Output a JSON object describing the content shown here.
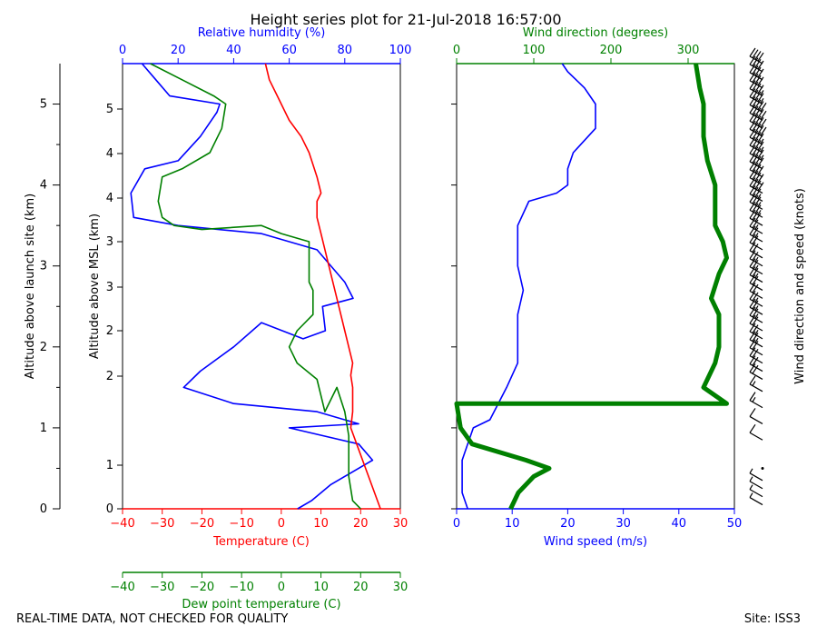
{
  "colors": {
    "temp": "#ff0000",
    "dew": "#008000",
    "rh": "#0000ff",
    "wdir": "#008000",
    "wspd": "#0000ff",
    "axis": "#000000"
  },
  "chart_data": {
    "type": "line",
    "title": "Height series plot for 21-Jul-2018 16:57:00",
    "footer_left": "REAL-TIME DATA, NOT CHECKED FOR QUALITY",
    "footer_right": "Site: ISS3",
    "left_panel": {
      "ylabel_outer": "Altitude above launch site (km)",
      "ylabel_inner": "Altitude above MSL (km)",
      "outer_ticks": [
        "0",
        "1",
        "2",
        "3",
        "4",
        "5"
      ],
      "inner_ticks": [
        "0",
        "1",
        "2",
        "2",
        "3",
        "3",
        "4",
        "4",
        "5"
      ],
      "temp_axis": {
        "label": "Temperature (C)",
        "ticks": [
          "−40",
          "−30",
          "−20",
          "−10",
          "0",
          "10",
          "20",
          "30"
        ],
        "range": [
          -40,
          30
        ]
      },
      "dew_axis": {
        "label": "Dew point temperature (C)",
        "ticks": [
          "−40",
          "−30",
          "−20",
          "−10",
          "0",
          "10",
          "20",
          "30"
        ],
        "range": [
          -40,
          30
        ]
      },
      "rh_axis": {
        "label": "Relative humidity (%)",
        "ticks": [
          "0",
          "20",
          "40",
          "60",
          "80",
          "100"
        ],
        "range": [
          0,
          100
        ]
      },
      "altitude_range_km": [
        0,
        5
      ],
      "series": [
        {
          "name": "Temperature",
          "units": "C",
          "points": [
            [
              25,
              0
            ],
            [
              22,
              0.4
            ],
            [
              19,
              0.8
            ],
            [
              17.5,
              1.0
            ],
            [
              18,
              1.2
            ],
            [
              18,
              1.5
            ],
            [
              17.5,
              1.65
            ],
            [
              18,
              1.8
            ],
            [
              16,
              2.2
            ],
            [
              14,
              2.6
            ],
            [
              12,
              3.0
            ],
            [
              10,
              3.4
            ],
            [
              9,
              3.6
            ],
            [
              9,
              3.8
            ],
            [
              10,
              3.9
            ],
            [
              9,
              4.1
            ],
            [
              7,
              4.4
            ],
            [
              5,
              4.6
            ],
            [
              2,
              4.8
            ],
            [
              -1,
              5.1
            ],
            [
              -3,
              5.3
            ],
            [
              -4,
              5.5
            ]
          ]
        },
        {
          "name": "Dew point",
          "units": "C",
          "points": [
            [
              20,
              0
            ],
            [
              18,
              0.1
            ],
            [
              17,
              0.4
            ],
            [
              17,
              0.9
            ],
            [
              16,
              1.2
            ],
            [
              14,
              1.5
            ],
            [
              11,
              1.2
            ],
            [
              9,
              1.6
            ],
            [
              4,
              1.8
            ],
            [
              2,
              2.0
            ],
            [
              4,
              2.2
            ],
            [
              8,
              2.4
            ],
            [
              8,
              2.7
            ],
            [
              7,
              2.8
            ],
            [
              7,
              3.3
            ],
            [
              0,
              3.4
            ],
            [
              -5,
              3.5
            ],
            [
              -20,
              3.45
            ],
            [
              -27,
              3.5
            ],
            [
              -30,
              3.6
            ],
            [
              -31,
              3.8
            ],
            [
              -30,
              4.1
            ],
            [
              -25,
              4.2
            ],
            [
              -18,
              4.4
            ],
            [
              -15,
              4.7
            ],
            [
              -14,
              5.0
            ],
            [
              -17,
              5.1
            ],
            [
              -25,
              5.3
            ],
            [
              -33,
              5.5
            ]
          ]
        },
        {
          "name": "Relative humidity",
          "units": "%",
          "points": [
            [
              63,
              0
            ],
            [
              68,
              0.1
            ],
            [
              75,
              0.3
            ],
            [
              90,
              0.6
            ],
            [
              85,
              0.8
            ],
            [
              60,
              1.0
            ],
            [
              85,
              1.05
            ],
            [
              70,
              1.2
            ],
            [
              40,
              1.3
            ],
            [
              22,
              1.5
            ],
            [
              28,
              1.7
            ],
            [
              40,
              2.0
            ],
            [
              50,
              2.3
            ],
            [
              65,
              2.1
            ],
            [
              73,
              2.2
            ],
            [
              72,
              2.5
            ],
            [
              83,
              2.6
            ],
            [
              80,
              2.8
            ],
            [
              70,
              3.2
            ],
            [
              50,
              3.4
            ],
            [
              20,
              3.5
            ],
            [
              4,
              3.6
            ],
            [
              3,
              3.9
            ],
            [
              8,
              4.2
            ],
            [
              20,
              4.3
            ],
            [
              28,
              4.6
            ],
            [
              34,
              4.9
            ],
            [
              35,
              5.0
            ],
            [
              17,
              5.1
            ],
            [
              12,
              5.3
            ],
            [
              7,
              5.5
            ]
          ]
        }
      ]
    },
    "right_panel": {
      "wspd_axis": {
        "label": "Wind speed (m/s)",
        "ticks": [
          "0",
          "10",
          "20",
          "30",
          "40",
          "50"
        ],
        "range": [
          0,
          50
        ]
      },
      "wdir_axis": {
        "label": "Wind direction (degrees)",
        "ticks": [
          "0",
          "100",
          "200",
          "300"
        ],
        "range": [
          0,
          360
        ]
      },
      "barb_label": "Wind direction and speed (knots)",
      "series": [
        {
          "name": "Wind speed",
          "units": "m/s",
          "points": [
            [
              2,
              0
            ],
            [
              1,
              0.2
            ],
            [
              1,
              0.6
            ],
            [
              2,
              0.8
            ],
            [
              3,
              1.0
            ],
            [
              6,
              1.1
            ],
            [
              9,
              1.5
            ],
            [
              11,
              1.8
            ],
            [
              11,
              2.4
            ],
            [
              12,
              2.7
            ],
            [
              11,
              3.0
            ],
            [
              11,
              3.5
            ],
            [
              13,
              3.8
            ],
            [
              18,
              3.9
            ],
            [
              20,
              4.0
            ],
            [
              20,
              4.2
            ],
            [
              21,
              4.4
            ],
            [
              25,
              4.7
            ],
            [
              25,
              5.0
            ],
            [
              23,
              5.2
            ],
            [
              20,
              5.4
            ],
            [
              19,
              5.5
            ]
          ]
        },
        {
          "name": "Wind direction",
          "units": "degrees",
          "points": [
            [
              70,
              0
            ],
            [
              80,
              0.2
            ],
            [
              100,
              0.4
            ],
            [
              120,
              0.5
            ],
            [
              90,
              0.6
            ],
            [
              20,
              0.8
            ],
            [
              5,
              1.0
            ],
            [
              0,
              1.3
            ],
            [
              350,
              1.3
            ],
            [
              320,
              1.5
            ],
            [
              335,
              1.8
            ],
            [
              340,
              2.0
            ],
            [
              340,
              2.4
            ],
            [
              330,
              2.6
            ],
            [
              340,
              2.9
            ],
            [
              350,
              3.1
            ],
            [
              345,
              3.3
            ],
            [
              335,
              3.5
            ],
            [
              335,
              4.0
            ],
            [
              325,
              4.3
            ],
            [
              320,
              4.6
            ],
            [
              320,
              5.0
            ],
            [
              315,
              5.2
            ],
            [
              310,
              5.5
            ]
          ]
        }
      ]
    },
    "barbs": [
      {
        "alt": 0.05,
        "speed_kt": 5
      },
      {
        "alt": 0.15,
        "speed_kt": 5
      },
      {
        "alt": 0.25,
        "speed_kt": 5
      },
      {
        "alt": 0.35,
        "speed_kt": 5
      },
      {
        "alt": 0.5,
        "speed_kt": 0
      },
      {
        "alt": 0.85,
        "speed_kt": 10
      },
      {
        "alt": 1.05,
        "speed_kt": 10
      },
      {
        "alt": 1.25,
        "speed_kt": 15
      },
      {
        "alt": 1.45,
        "speed_kt": 15
      },
      {
        "alt": 1.6,
        "speed_kt": 20
      },
      {
        "alt": 1.7,
        "speed_kt": 20
      },
      {
        "alt": 1.8,
        "speed_kt": 20
      },
      {
        "alt": 1.9,
        "speed_kt": 20
      },
      {
        "alt": 2.0,
        "speed_kt": 25
      },
      {
        "alt": 2.1,
        "speed_kt": 25
      },
      {
        "alt": 2.2,
        "speed_kt": 20
      },
      {
        "alt": 2.3,
        "speed_kt": 25
      },
      {
        "alt": 2.4,
        "speed_kt": 25
      },
      {
        "alt": 2.5,
        "speed_kt": 25
      },
      {
        "alt": 2.6,
        "speed_kt": 20
      },
      {
        "alt": 2.7,
        "speed_kt": 20
      },
      {
        "alt": 2.8,
        "speed_kt": 25
      },
      {
        "alt": 2.9,
        "speed_kt": 25
      },
      {
        "alt": 3.0,
        "speed_kt": 25
      },
      {
        "alt": 3.1,
        "speed_kt": 20
      },
      {
        "alt": 3.2,
        "speed_kt": 20
      },
      {
        "alt": 3.3,
        "speed_kt": 25
      },
      {
        "alt": 3.4,
        "speed_kt": 25
      },
      {
        "alt": 3.5,
        "speed_kt": 30
      },
      {
        "alt": 3.6,
        "speed_kt": 35
      },
      {
        "alt": 3.7,
        "speed_kt": 35
      },
      {
        "alt": 3.8,
        "speed_kt": 35
      },
      {
        "alt": 3.9,
        "speed_kt": 40
      },
      {
        "alt": 4.0,
        "speed_kt": 40
      },
      {
        "alt": 4.1,
        "speed_kt": 40
      },
      {
        "alt": 4.2,
        "speed_kt": 40
      },
      {
        "alt": 4.3,
        "speed_kt": 45
      },
      {
        "alt": 4.4,
        "speed_kt": 45
      },
      {
        "alt": 4.5,
        "speed_kt": 45
      },
      {
        "alt": 4.6,
        "speed_kt": 50
      },
      {
        "alt": 4.7,
        "speed_kt": 50
      },
      {
        "alt": 4.8,
        "speed_kt": 50
      },
      {
        "alt": 4.9,
        "speed_kt": 50
      },
      {
        "alt": 5.0,
        "speed_kt": 45
      },
      {
        "alt": 5.1,
        "speed_kt": 45
      },
      {
        "alt": 5.2,
        "speed_kt": 40
      },
      {
        "alt": 5.3,
        "speed_kt": 40
      },
      {
        "alt": 5.4,
        "speed_kt": 40
      },
      {
        "alt": 5.5,
        "speed_kt": 40
      }
    ]
  }
}
